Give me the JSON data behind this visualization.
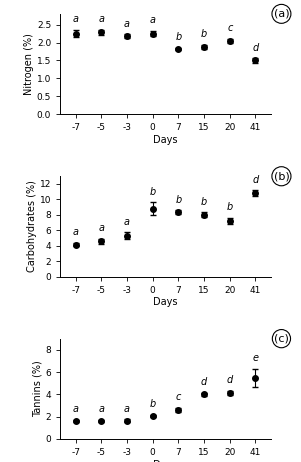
{
  "days": [
    -7,
    -5,
    -3,
    0,
    7,
    15,
    20,
    41
  ],
  "x_positions": [
    0,
    1,
    2,
    3,
    4,
    5,
    6,
    7
  ],
  "nitrogen": {
    "means": [
      2.25,
      2.28,
      2.18,
      2.25,
      1.82,
      1.88,
      2.05,
      1.5
    ],
    "errors": [
      0.1,
      0.07,
      0.05,
      0.08,
      0.04,
      0.06,
      0.05,
      0.06
    ],
    "labels": [
      "a",
      "a",
      "a",
      "a",
      "b",
      "b",
      "c",
      "d"
    ],
    "ylabel": "Nitrogen (%)",
    "ylim": [
      0,
      2.8
    ],
    "yticks": [
      0,
      0.5,
      1.0,
      1.5,
      2.0,
      2.5
    ],
    "panel_label": "a"
  },
  "carbohydrates": {
    "means": [
      4.15,
      4.55,
      5.3,
      8.8,
      8.35,
      8.0,
      7.2,
      10.8
    ],
    "errors": [
      0.25,
      0.35,
      0.45,
      0.8,
      0.25,
      0.3,
      0.45,
      0.4
    ],
    "labels": [
      "a",
      "a",
      "a",
      "b",
      "b",
      "b",
      "b",
      "d"
    ],
    "ylabel": "Carbohydrates (%)",
    "ylim": [
      0,
      13
    ],
    "yticks": [
      0,
      2,
      4,
      6,
      8,
      10,
      12
    ],
    "panel_label": "b"
  },
  "tannins": {
    "means": [
      1.6,
      1.6,
      1.65,
      2.05,
      2.6,
      4.0,
      4.15,
      5.5
    ],
    "errors": [
      0.12,
      0.1,
      0.1,
      0.12,
      0.2,
      0.15,
      0.18,
      0.8
    ],
    "labels": [
      "a",
      "a",
      "a",
      "b",
      "c",
      "d",
      "d",
      "e"
    ],
    "ylabel": "Tannins (%)",
    "ylim": [
      0,
      9
    ],
    "yticks": [
      0,
      2,
      4,
      6,
      8
    ],
    "panel_label": "c"
  },
  "xlabel": "Days",
  "marker": "o",
  "markersize": 4,
  "capsize": 2.5,
  "label_fontsize": 7,
  "tick_fontsize": 6.5,
  "panel_label_fontsize": 8,
  "stat_label_fontsize": 7,
  "linewidth": 0.8,
  "color": "black"
}
